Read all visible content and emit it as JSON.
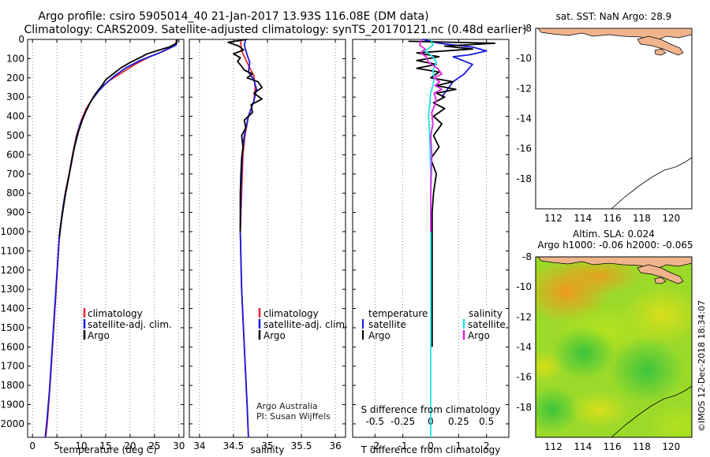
{
  "header": {
    "line1": "Argo profile: csiro 5905014_40 21-Jan-2017 13.93S 116.08E (DM data)",
    "line2": "Climatology: CARS2009. Satellite-adjusted climatology: synTS_20170121.nc (0.48d earlier)"
  },
  "colors": {
    "climatology": "#e8262e",
    "satellite": "#1a1adc",
    "argo": "#000000",
    "sat_salinity": "#22e0e8",
    "argo_salinity": "#e020e0",
    "land": "#f0b48c"
  },
  "chart_data": [
    {
      "id": "temperature",
      "type": "line",
      "xlabel": "temperature (deg C)",
      "ylabel": "",
      "xlim": [
        -1,
        31
      ],
      "ylim": [
        2070,
        0
      ],
      "xticks": [
        0,
        5,
        10,
        15,
        20,
        25,
        30
      ],
      "yticks": [
        0,
        100,
        200,
        300,
        400,
        500,
        600,
        700,
        800,
        900,
        1000,
        1100,
        1200,
        1300,
        1400,
        1500,
        1600,
        1700,
        1800,
        1900,
        2000
      ],
      "legend": [
        "climatology",
        "satellite-adj. clim.",
        "Argo"
      ],
      "series": [
        {
          "name": "climatology",
          "color": "#e8262e",
          "points": [
            [
              29.5,
              0
            ],
            [
              29.3,
              30
            ],
            [
              27,
              60
            ],
            [
              24,
              90
            ],
            [
              21,
              130
            ],
            [
              18.5,
              170
            ],
            [
              16,
              210
            ],
            [
              14,
              250
            ],
            [
              12.5,
              300
            ],
            [
              11,
              360
            ],
            [
              10,
              420
            ],
            [
              9,
              500
            ],
            [
              8.2,
              600
            ],
            [
              7.5,
              700
            ],
            [
              6.7,
              800
            ],
            [
              6.1,
              900
            ],
            [
              5.6,
              1000
            ],
            [
              5.1,
              1200
            ],
            [
              4.6,
              1400
            ],
            [
              4.1,
              1600
            ],
            [
              3.6,
              1800
            ],
            [
              3,
              2000
            ],
            [
              2.7,
              2070
            ]
          ]
        },
        {
          "name": "satellite-adj. clim.",
          "color": "#1a1adc",
          "points": [
            [
              29.7,
              0
            ],
            [
              29.4,
              30
            ],
            [
              26,
              70
            ],
            [
              22,
              110
            ],
            [
              19,
              150
            ],
            [
              16.8,
              190
            ],
            [
              15,
              230
            ],
            [
              13.5,
              270
            ],
            [
              12,
              320
            ],
            [
              10.8,
              380
            ],
            [
              9.8,
              440
            ],
            [
              8.9,
              520
            ],
            [
              8.1,
              620
            ],
            [
              7.4,
              720
            ],
            [
              6.6,
              820
            ],
            [
              6,
              920
            ],
            [
              5.5,
              1020
            ],
            [
              5,
              1220
            ],
            [
              4.5,
              1420
            ],
            [
              4,
              1620
            ],
            [
              3.5,
              1820
            ],
            [
              2.9,
              2000
            ],
            [
              2.6,
              2070
            ]
          ]
        },
        {
          "name": "Argo",
          "color": "#000000",
          "points": [
            [
              29.6,
              0
            ],
            [
              29.5,
              20
            ],
            [
              28,
              40
            ],
            [
              26,
              55
            ],
            [
              23.5,
              75
            ],
            [
              22,
              95
            ],
            [
              20,
              120
            ],
            [
              18,
              150
            ],
            [
              16.5,
              180
            ],
            [
              15,
              210
            ],
            [
              14.2,
              240
            ],
            [
              13,
              280
            ],
            [
              12,
              320
            ],
            [
              11,
              370
            ],
            [
              10.2,
              420
            ],
            [
              9.4,
              480
            ],
            [
              8.6,
              560
            ],
            [
              8,
              640
            ],
            [
              7.3,
              730
            ],
            [
              6.6,
              830
            ],
            [
              6,
              930
            ],
            [
              5.5,
              1030
            ]
          ]
        }
      ]
    },
    {
      "id": "salinity",
      "type": "line",
      "xlabel": "salinity",
      "ylabel": "",
      "xlim": [
        33.85,
        36.15
      ],
      "ylim": [
        2070,
        0
      ],
      "xticks": [
        34,
        34.5,
        35,
        35.5,
        36
      ],
      "xtick_labels": [
        "34",
        "34.5",
        "35",
        "35.5",
        "36"
      ],
      "legend": [
        "climatology",
        "satellite-adj. clim.",
        "Argo"
      ],
      "annotation": [
        "Argo Australia",
        "PI: Susan Wijffels"
      ],
      "series": [
        {
          "name": "climatology",
          "color": "#e8262e",
          "points": [
            [
              34.6,
              0
            ],
            [
              34.62,
              60
            ],
            [
              34.7,
              120
            ],
            [
              34.8,
              190
            ],
            [
              34.82,
              250
            ],
            [
              34.8,
              320
            ],
            [
              34.72,
              400
            ],
            [
              34.67,
              500
            ],
            [
              34.64,
              600
            ],
            [
              34.62,
              800
            ],
            [
              34.6,
              1000
            ],
            [
              34.62,
              1300
            ],
            [
              34.66,
              1600
            ],
            [
              34.7,
              1900
            ],
            [
              34.72,
              2070
            ]
          ]
        },
        {
          "name": "satellite-adj. clim.",
          "color": "#1a1adc",
          "points": [
            [
              34.68,
              0
            ],
            [
              34.66,
              30
            ],
            [
              34.7,
              80
            ],
            [
              34.74,
              120
            ],
            [
              34.72,
              170
            ],
            [
              34.8,
              210
            ],
            [
              34.84,
              260
            ],
            [
              34.8,
              320
            ],
            [
              34.72,
              400
            ],
            [
              34.66,
              500
            ],
            [
              34.63,
              600
            ],
            [
              34.61,
              800
            ],
            [
              34.6,
              1000
            ],
            [
              34.62,
              1300
            ],
            [
              34.66,
              1600
            ],
            [
              34.7,
              1900
            ],
            [
              34.72,
              2070
            ]
          ]
        },
        {
          "name": "Argo",
          "color": "#000000",
          "points": [
            [
              34.7,
              0
            ],
            [
              34.42,
              15
            ],
            [
              34.58,
              35
            ],
            [
              34.65,
              55
            ],
            [
              34.5,
              75
            ],
            [
              34.6,
              95
            ],
            [
              34.56,
              115
            ],
            [
              34.62,
              140
            ],
            [
              34.66,
              160
            ],
            [
              34.78,
              180
            ],
            [
              34.7,
              200
            ],
            [
              34.86,
              220
            ],
            [
              34.92,
              250
            ],
            [
              34.8,
              280
            ],
            [
              34.92,
              310
            ],
            [
              34.76,
              340
            ],
            [
              34.78,
              380
            ],
            [
              34.66,
              420
            ],
            [
              34.68,
              460
            ],
            [
              34.62,
              500
            ],
            [
              34.64,
              560
            ],
            [
              34.62,
              620
            ],
            [
              34.61,
              700
            ],
            [
              34.6,
              800
            ],
            [
              34.6,
              900
            ],
            [
              34.6,
              1000
            ]
          ]
        }
      ]
    },
    {
      "id": "difference",
      "type": "line",
      "xlabel": "T difference from climatology",
      "ylabel": "",
      "xlim": [
        -2.8,
        2.8
      ],
      "ylim": [
        2070,
        0
      ],
      "xticks": [
        -2,
        -1,
        0,
        1,
        2
      ],
      "s_xlabel": "S difference from climatology",
      "s_xlim": [
        -0.7,
        0.7
      ],
      "s_xticks": [
        -0.5,
        -0.25,
        0,
        0.25,
        0.5
      ],
      "s_xtick_labels": [
        "-0.5",
        "-0.25",
        "0",
        "0.25",
        "0.5"
      ],
      "legend_left_title": "temperature",
      "legend_right_title": "salinity",
      "legend": [
        "satellite",
        "Argo",
        "satellite",
        "Argo"
      ],
      "series": [
        {
          "name": "T satellite",
          "color": "#1a1adc",
          "points": [
            [
              -0.3,
              0
            ],
            [
              0.3,
              20
            ],
            [
              1.5,
              40
            ],
            [
              2,
              60
            ],
            [
              1.4,
              80
            ],
            [
              0.8,
              90
            ],
            [
              1.5,
              130
            ],
            [
              1.2,
              180
            ],
            [
              0.8,
              220
            ],
            [
              0.6,
              260
            ],
            [
              0.4,
              300
            ]
          ]
        },
        {
          "name": "T Argo",
          "color": "#000000",
          "points": [
            [
              -0.8,
              10
            ],
            [
              2.3,
              20
            ],
            [
              0.5,
              35
            ],
            [
              1.5,
              50
            ],
            [
              -0.5,
              70
            ],
            [
              0.3,
              90
            ],
            [
              -0.5,
              110
            ],
            [
              0.2,
              130
            ],
            [
              -0.5,
              150
            ],
            [
              0.3,
              170
            ],
            [
              0,
              200
            ],
            [
              0.8,
              220
            ],
            [
              0.2,
              240
            ],
            [
              0.9,
              260
            ],
            [
              0.2,
              280
            ],
            [
              0.5,
              300
            ],
            [
              0.1,
              330
            ],
            [
              0.5,
              360
            ],
            [
              0.1,
              400
            ],
            [
              0.4,
              440
            ],
            [
              0.1,
              500
            ],
            [
              0.3,
              560
            ],
            [
              0,
              620
            ],
            [
              0.2,
              700
            ],
            [
              0.1,
              800
            ],
            [
              0.05,
              900
            ],
            [
              0.05,
              1000
            ],
            [
              0.05,
              1300
            ],
            [
              0.05,
              1600
            ]
          ]
        },
        {
          "name": "S satellite",
          "color": "#22e0e8",
          "points": [
            [
              0,
              0
            ],
            [
              0.02,
              30
            ],
            [
              -0.05,
              60
            ],
            [
              0.02,
              90
            ],
            [
              0.05,
              120
            ],
            [
              0.02,
              160
            ],
            [
              0.03,
              200
            ],
            [
              0.02,
              240
            ],
            [
              0,
              280
            ],
            [
              -0.01,
              340
            ],
            [
              -0.02,
              400
            ],
            [
              -0.01,
              500
            ],
            [
              0,
              700
            ],
            [
              0,
              1000
            ],
            [
              0,
              1500
            ],
            [
              0,
              2070
            ]
          ]
        },
        {
          "name": "S Argo",
          "color": "#e020e0",
          "points": [
            [
              -0.08,
              0
            ],
            [
              -0.1,
              30
            ],
            [
              -0.05,
              50
            ],
            [
              -0.09,
              70
            ],
            [
              -0.04,
              90
            ],
            [
              -0.02,
              120
            ],
            [
              0.06,
              150
            ],
            [
              0.1,
              180
            ],
            [
              0.03,
              200
            ],
            [
              0.08,
              220
            ],
            [
              0.04,
              240
            ],
            [
              0.1,
              260
            ],
            [
              0.03,
              280
            ],
            [
              0.05,
              320
            ],
            [
              0.01,
              380
            ],
            [
              0.02,
              440
            ],
            [
              0,
              500
            ],
            [
              0.01,
              600
            ],
            [
              0,
              800
            ],
            [
              0,
              1000
            ]
          ]
        }
      ]
    },
    {
      "id": "sst_map",
      "type": "map",
      "title": "sat. SST: NaN Argo: 28.9",
      "xlim": [
        110.8,
        121.4
      ],
      "ylim": [
        -20,
        -8
      ],
      "xticks": [
        112,
        114,
        116,
        118,
        120
      ],
      "yticks": [
        -8,
        -10,
        -12,
        -14,
        -16,
        -18
      ],
      "marker": [
        116.08,
        -13.93
      ]
    },
    {
      "id": "sla_map",
      "type": "map",
      "title": "Altim. SLA: 0.024",
      "subtitle": "Argo h1000: -0.06 h2000: -0.065",
      "xlim": [
        110.8,
        121.4
      ],
      "ylim": [
        -20,
        -8
      ],
      "xticks": [
        112,
        114,
        116,
        118,
        120
      ],
      "yticks": [
        -8,
        -10,
        -12,
        -14,
        -16,
        -18
      ],
      "marker": [
        116.08,
        -13.93
      ]
    }
  ],
  "footer": {
    "stamp": "©IMOS 12-Dec-2018 18:34:07"
  }
}
